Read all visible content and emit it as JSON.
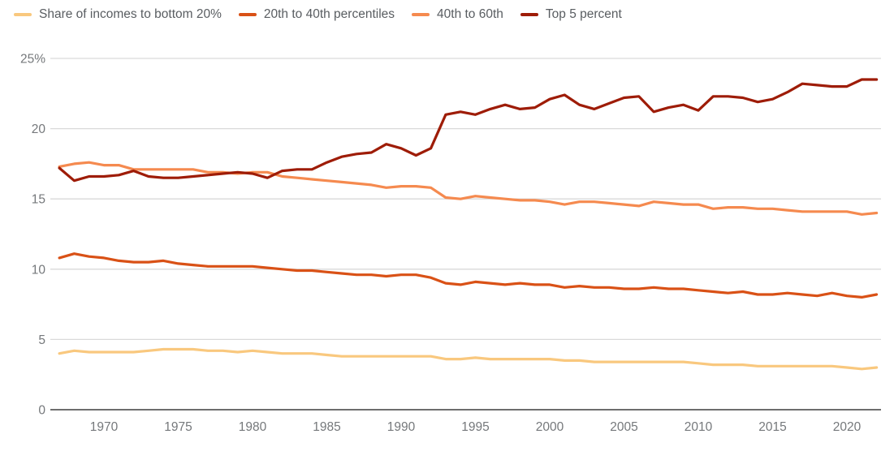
{
  "legend": {
    "items": [
      {
        "label": "Share of incomes to bottom 20%",
        "color": "#f9c87e"
      },
      {
        "label": "20th to 40th percentiles",
        "color": "#d95116"
      },
      {
        "label": "40th to 60th",
        "color": "#f58a4f"
      },
      {
        "label": "Top 5 percent",
        "color": "#9e1c07"
      }
    ]
  },
  "chart_data": {
    "type": "line",
    "title": "",
    "xlabel": "",
    "ylabel": "",
    "x": [
      1967,
      1968,
      1969,
      1970,
      1971,
      1972,
      1973,
      1974,
      1975,
      1976,
      1977,
      1978,
      1979,
      1980,
      1981,
      1982,
      1983,
      1984,
      1985,
      1986,
      1987,
      1988,
      1989,
      1990,
      1991,
      1992,
      1993,
      1994,
      1995,
      1996,
      1997,
      1998,
      1999,
      2000,
      2001,
      2002,
      2003,
      2004,
      2005,
      2006,
      2007,
      2008,
      2009,
      2010,
      2011,
      2012,
      2013,
      2014,
      2015,
      2016,
      2017,
      2018,
      2019,
      2020,
      2021,
      2022
    ],
    "series": [
      {
        "name": "Share of incomes to bottom 20%",
        "color": "#f9c87e",
        "values": [
          4.0,
          4.2,
          4.1,
          4.1,
          4.1,
          4.1,
          4.2,
          4.3,
          4.3,
          4.3,
          4.2,
          4.2,
          4.1,
          4.2,
          4.1,
          4.0,
          4.0,
          4.0,
          3.9,
          3.8,
          3.8,
          3.8,
          3.8,
          3.8,
          3.8,
          3.8,
          3.6,
          3.6,
          3.7,
          3.6,
          3.6,
          3.6,
          3.6,
          3.6,
          3.5,
          3.5,
          3.4,
          3.4,
          3.4,
          3.4,
          3.4,
          3.4,
          3.4,
          3.3,
          3.2,
          3.2,
          3.2,
          3.1,
          3.1,
          3.1,
          3.1,
          3.1,
          3.1,
          3.0,
          2.9,
          3.0
        ]
      },
      {
        "name": "20th to 40th percentiles",
        "color": "#d95116",
        "values": [
          10.8,
          11.1,
          10.9,
          10.8,
          10.6,
          10.5,
          10.5,
          10.6,
          10.4,
          10.3,
          10.2,
          10.2,
          10.2,
          10.2,
          10.1,
          10.0,
          9.9,
          9.9,
          9.8,
          9.7,
          9.6,
          9.6,
          9.5,
          9.6,
          9.6,
          9.4,
          9.0,
          8.9,
          9.1,
          9.0,
          8.9,
          9.0,
          8.9,
          8.9,
          8.7,
          8.8,
          8.7,
          8.7,
          8.6,
          8.6,
          8.7,
          8.6,
          8.6,
          8.5,
          8.4,
          8.3,
          8.4,
          8.2,
          8.2,
          8.3,
          8.2,
          8.1,
          8.3,
          8.1,
          8.0,
          8.2
        ]
      },
      {
        "name": "40th to 60th",
        "color": "#f58a4f",
        "values": [
          17.3,
          17.5,
          17.6,
          17.4,
          17.4,
          17.1,
          17.1,
          17.1,
          17.1,
          17.1,
          16.9,
          16.9,
          16.8,
          16.9,
          16.9,
          16.6,
          16.5,
          16.4,
          16.3,
          16.2,
          16.1,
          16.0,
          15.8,
          15.9,
          15.9,
          15.8,
          15.1,
          15.0,
          15.2,
          15.1,
          15.0,
          14.9,
          14.9,
          14.8,
          14.6,
          14.8,
          14.8,
          14.7,
          14.6,
          14.5,
          14.8,
          14.7,
          14.6,
          14.6,
          14.3,
          14.4,
          14.4,
          14.3,
          14.3,
          14.2,
          14.1,
          14.1,
          14.1,
          14.1,
          13.9,
          14.0
        ]
      },
      {
        "name": "Top 5 percent",
        "color": "#9e1c07",
        "values": [
          17.2,
          16.3,
          16.6,
          16.6,
          16.7,
          17.0,
          16.6,
          16.5,
          16.5,
          16.6,
          16.7,
          16.8,
          16.9,
          16.8,
          16.5,
          17.0,
          17.1,
          17.1,
          17.6,
          18.0,
          18.2,
          18.3,
          18.9,
          18.6,
          18.1,
          18.6,
          21.0,
          21.2,
          21.0,
          21.4,
          21.7,
          21.4,
          21.5,
          22.1,
          22.4,
          21.7,
          21.4,
          21.8,
          22.2,
          22.3,
          21.2,
          21.5,
          21.7,
          21.3,
          22.3,
          22.3,
          22.2,
          21.9,
          22.1,
          22.6,
          23.2,
          23.1,
          23.0,
          23.0,
          23.5,
          23.5
        ]
      }
    ],
    "ylim": [
      0,
      25
    ],
    "yticks": [
      0,
      5,
      10,
      15,
      20,
      25
    ],
    "ytick_labels": [
      "0",
      "5",
      "10",
      "15",
      "20",
      "25%"
    ],
    "xticks": [
      1970,
      1975,
      1980,
      1985,
      1990,
      1995,
      2000,
      2005,
      2010,
      2015,
      2020
    ],
    "grid": "horizontal",
    "legend_position": "top-left"
  },
  "colors": {
    "background": "#ffffff",
    "gridline": "#d9d9d9",
    "axis_line": "#3f3f3f",
    "axis_text": "#75787b",
    "legend_text": "#595d61"
  }
}
